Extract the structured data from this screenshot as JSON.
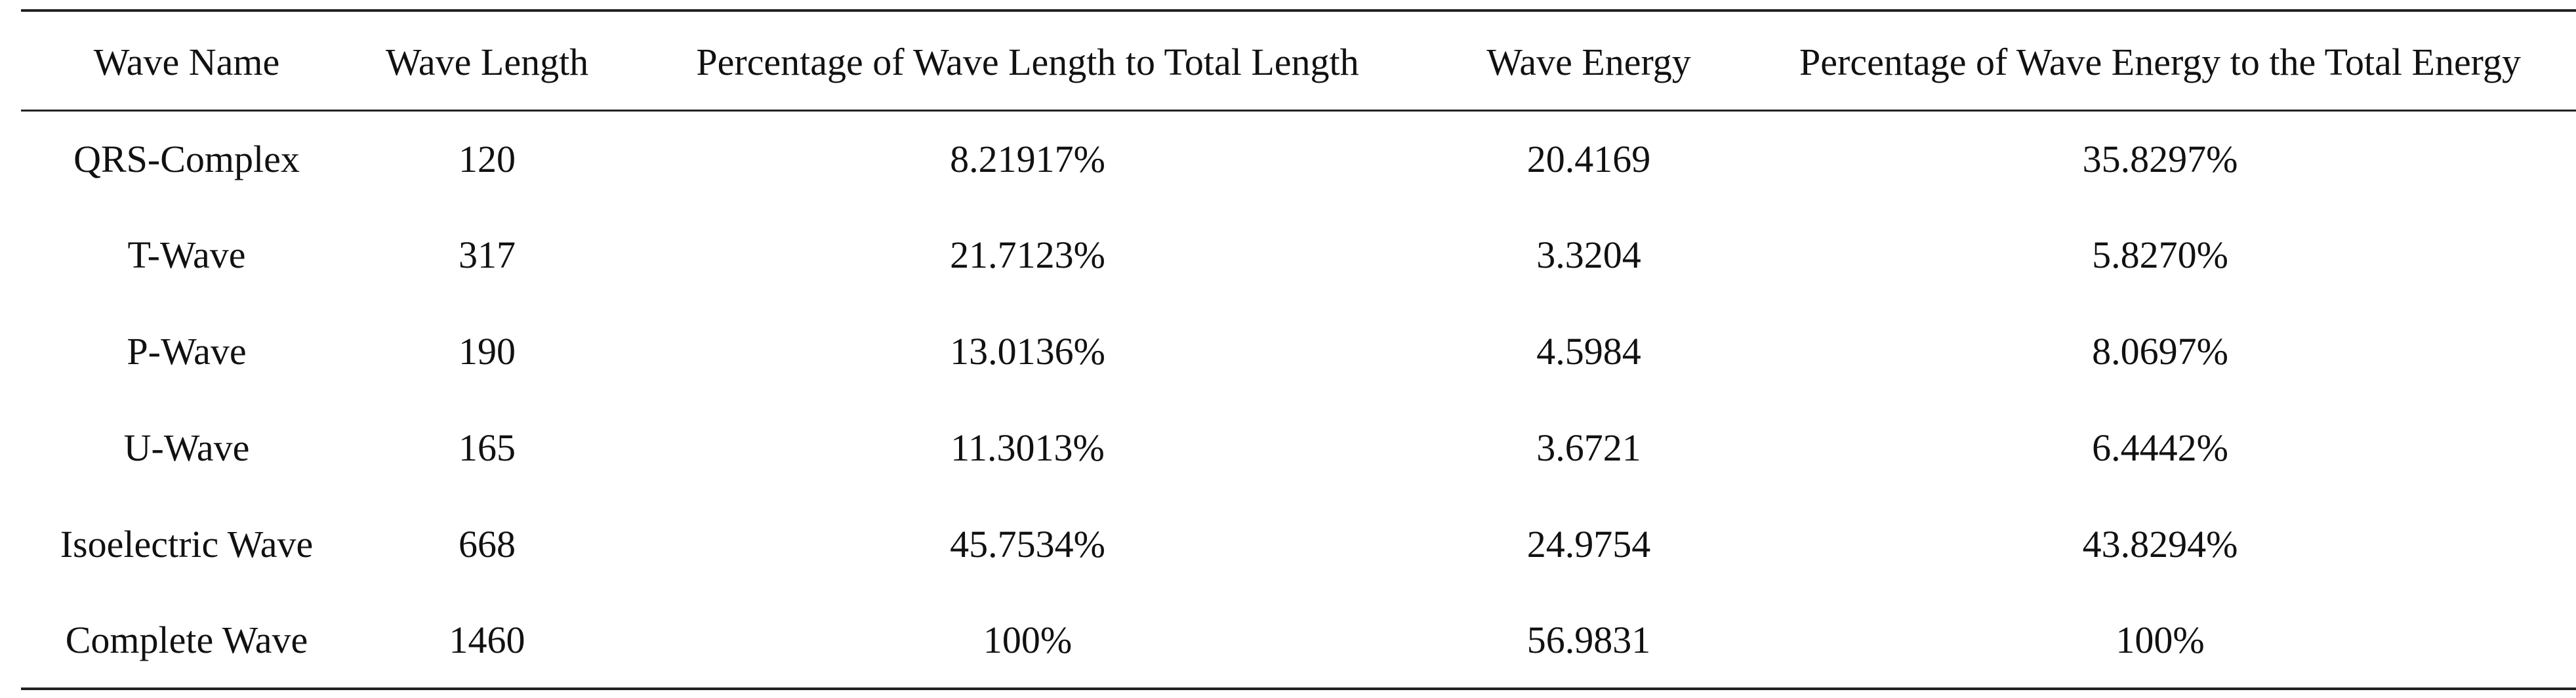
{
  "table": {
    "headers": [
      "Wave Name",
      "Wave Length",
      "Percentage of Wave Length to Total Length",
      "Wave Energy",
      "Percentage of Wave Energy to the Total Energy"
    ],
    "rows": [
      [
        "QRS-Complex",
        "120",
        "8.21917%",
        "20.4169",
        "35.8297%"
      ],
      [
        "T-Wave",
        "317",
        "21.7123%",
        "3.3204",
        "5.8270%"
      ],
      [
        "P-Wave",
        "190",
        "13.0136%",
        "4.5984",
        "8.0697%"
      ],
      [
        "U-Wave",
        "165",
        "11.3013%",
        "3.6721",
        "6.4442%"
      ],
      [
        "Isoelectric Wave",
        "668",
        "45.7534%",
        "24.9754",
        "43.8294%"
      ],
      [
        "Complete Wave",
        "1460",
        "100%",
        "56.9831",
        "100%"
      ]
    ]
  }
}
